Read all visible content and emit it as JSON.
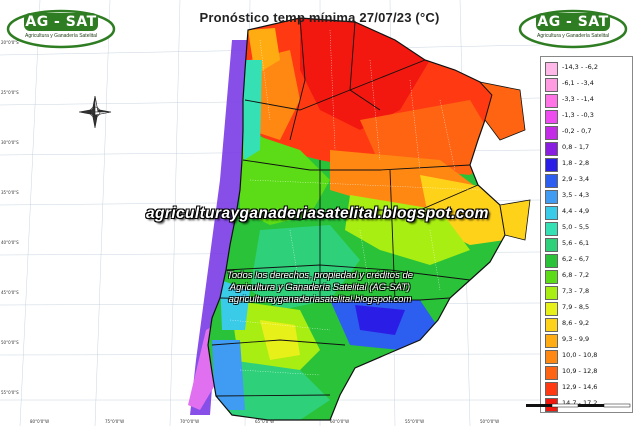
{
  "title": "Pronóstico temp mínima 27/07/23 (°C)",
  "logo": {
    "name": "AG - SAT",
    "subtitle": "Agricultura y Ganadería Satelital",
    "color": "#2f7d22"
  },
  "watermark": "agriculturayganaderiasatelital.blogspot.com",
  "rights": [
    "Todos los derechos, propiedad y créditos de",
    "Agricultura y Ganadería Satelital (AG-SAT)",
    "agriculturayganaderiasatelital.blogspot.com"
  ],
  "legend": [
    {
      "label": "-14,3 - -6,2",
      "color": "#ffb8e8"
    },
    {
      "label": "-6,1 - -3,4",
      "color": "#ff9be0"
    },
    {
      "label": "-3,3 - -1,4",
      "color": "#ff73e6"
    },
    {
      "label": "-1,3 - -0,3",
      "color": "#ee4cf0"
    },
    {
      "label": "-0,2 - 0,7",
      "color": "#c32be6"
    },
    {
      "label": "0,8 - 1,7",
      "color": "#8a1ee0"
    },
    {
      "label": "1,8 - 2,8",
      "color": "#2a1ee6"
    },
    {
      "label": "2,9 - 3,4",
      "color": "#2c5ff0"
    },
    {
      "label": "3,5 - 4,3",
      "color": "#3f9cf2"
    },
    {
      "label": "4,4 - 4,9",
      "color": "#39cbe8"
    },
    {
      "label": "5,0 - 5,5",
      "color": "#35e0b4"
    },
    {
      "label": "5,6 - 6,1",
      "color": "#2fd07a"
    },
    {
      "label": "6,2 - 6,7",
      "color": "#29c238"
    },
    {
      "label": "6,8 - 7,2",
      "color": "#5cdc16"
    },
    {
      "label": "7,3 - 7,8",
      "color": "#a8ee12"
    },
    {
      "label": "7,9 - 8,5",
      "color": "#e8f01a"
    },
    {
      "label": "8,6 - 9,2",
      "color": "#ffd21a"
    },
    {
      "label": "9,3 - 9,9",
      "color": "#ffac12"
    },
    {
      "label": "10,0 - 10,8",
      "color": "#ff8812"
    },
    {
      "label": "10,9 - 12,8",
      "color": "#ff6412"
    },
    {
      "label": "12,9 - 14,6",
      "color": "#ff3a12"
    },
    {
      "label": "14,7 - 17,2",
      "color": "#f21810"
    }
  ],
  "lat_labels": [
    "20°0'0\"S",
    "25°0'0\"S",
    "30°0'0\"S",
    "35°0'0\"S",
    "40°0'0\"S",
    "45°0'0\"S",
    "50°0'0\"S",
    "55°0'0\"S"
  ],
  "lon_labels": [
    "80°0'0\"W",
    "75°0'0\"W",
    "70°0'0\"W",
    "65°0'0\"W",
    "60°0'0\"W",
    "55°0'0\"W",
    "50°0'0\"W"
  ]
}
